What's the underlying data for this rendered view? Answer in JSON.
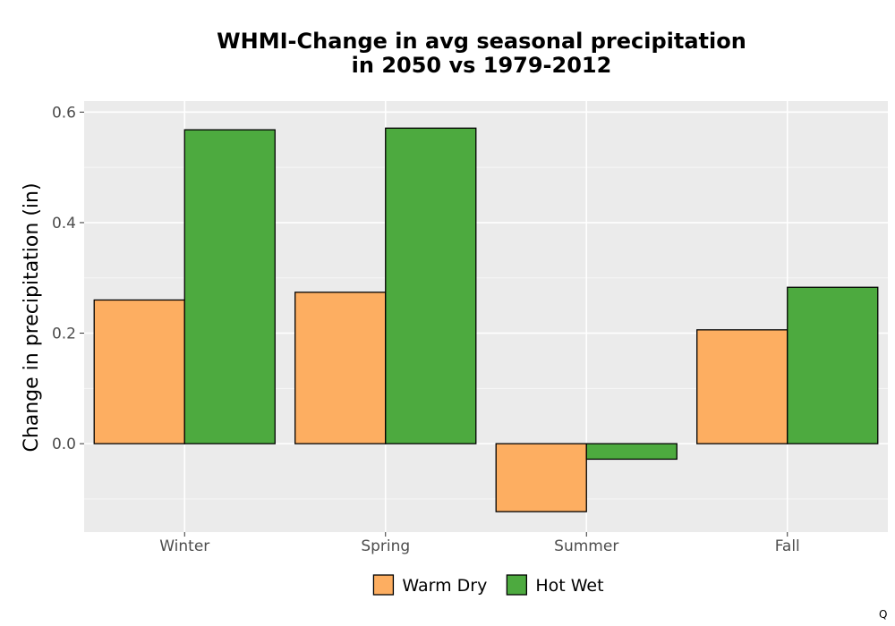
{
  "chart_data": {
    "type": "bar",
    "title": [
      "WHMI-Change in avg seasonal precipitation",
      "in 2050 vs 1979-2012"
    ],
    "xlabel": "",
    "ylabel": "Change in precipitation (in)",
    "categories": [
      "Winter",
      "Spring",
      "Summer",
      "Fall"
    ],
    "series": [
      {
        "name": "Warm Dry",
        "color": "#fdae61",
        "values": [
          0.26,
          0.274,
          -0.123,
          0.206
        ]
      },
      {
        "name": "Hot Wet",
        "color": "#4daa3f",
        "values": [
          0.568,
          0.571,
          -0.028,
          0.283
        ]
      }
    ],
    "ylim": [
      -0.16,
      0.62
    ],
    "yticks": [
      0.0,
      0.2,
      0.4,
      0.6
    ],
    "ytick_labels": [
      "0.0",
      "0.2",
      "0.4",
      "0.6"
    ],
    "grid": true,
    "panel_background": "#ebebeb",
    "legend_position": "bottom"
  },
  "corner_label": "Q"
}
